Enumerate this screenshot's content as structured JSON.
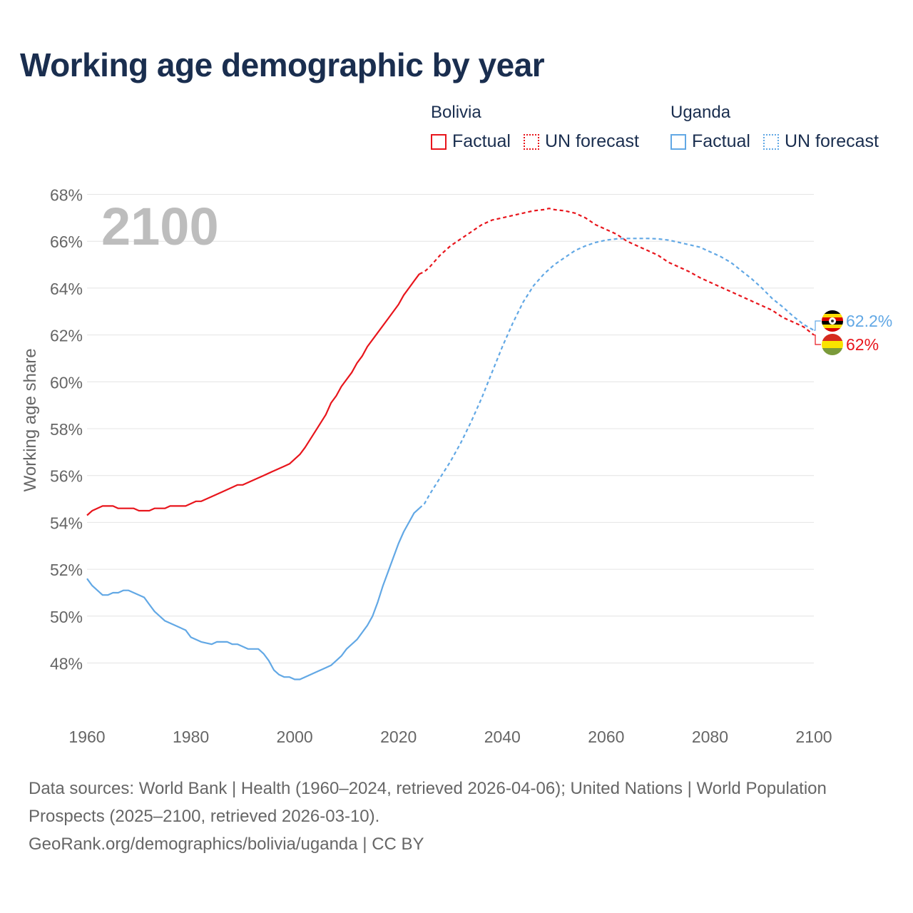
{
  "title": "Working age demographic by year",
  "legend": [
    {
      "country": "Bolivia",
      "color": "#e8151c",
      "factual_label": "Factual",
      "forecast_label": "UN forecast"
    },
    {
      "country": "Uganda",
      "color": "#62a8e5",
      "factual_label": "Factual",
      "forecast_label": "UN forecast"
    }
  ],
  "footer": {
    "sources": "Data sources: World Bank | Health (1960–2024, retrieved 2026-04-06); United Nations | World Population Prospects (2025–2100, retrieved 2026-03-10).",
    "credit": "GeoRank.org/demographics/bolivia/uganda | CC BY"
  },
  "chart_data": {
    "type": "line",
    "year_overlay": "2100",
    "ylabel": "Working age share",
    "xlim": [
      1960,
      2100
    ],
    "ylim": [
      46,
      68
    ],
    "x_ticks": [
      1960,
      1980,
      2000,
      2020,
      2040,
      2060,
      2080,
      2100
    ],
    "y_ticks": [
      48,
      50,
      52,
      54,
      56,
      58,
      60,
      62,
      64,
      66,
      68
    ],
    "y_tick_suffix": "%",
    "grid": true,
    "series": [
      {
        "name": "Bolivia",
        "color": "#e8151c",
        "factual": {
          "x": [
            1960,
            1961,
            1963,
            1965,
            1966,
            1968,
            1969,
            1970,
            1972,
            1973,
            1975,
            1976,
            1979,
            1981,
            1982,
            1984,
            1986,
            1988,
            1989,
            1990,
            1992,
            1994,
            1996,
            1998,
            1999,
            2000,
            2001,
            2002,
            2004,
            2006,
            2007,
            2008,
            2009,
            2010,
            2011,
            2012,
            2013,
            2014,
            2016,
            2018,
            2020,
            2021,
            2022,
            2023,
            2024
          ],
          "y": [
            54.3,
            54.5,
            54.7,
            54.7,
            54.6,
            54.6,
            54.6,
            54.5,
            54.5,
            54.6,
            54.6,
            54.7,
            54.7,
            54.9,
            54.9,
            55.1,
            55.3,
            55.5,
            55.6,
            55.6,
            55.8,
            56.0,
            56.2,
            56.4,
            56.5,
            56.7,
            56.9,
            57.2,
            57.9,
            58.6,
            59.1,
            59.4,
            59.8,
            60.1,
            60.4,
            60.8,
            61.1,
            61.5,
            62.1,
            62.7,
            63.3,
            63.7,
            64.0,
            64.3,
            64.6
          ]
        },
        "forecast": {
          "x": [
            2024,
            2025,
            2026,
            2028,
            2030,
            2032,
            2034,
            2036,
            2038,
            2040,
            2042,
            2044,
            2046,
            2048,
            2049,
            2050,
            2052,
            2054,
            2056,
            2058,
            2060,
            2062,
            2064,
            2066,
            2068,
            2070,
            2072,
            2074,
            2076,
            2078,
            2080,
            2082,
            2084,
            2086,
            2088,
            2090,
            2092,
            2094,
            2096,
            2098,
            2100
          ],
          "y": [
            64.6,
            64.7,
            64.9,
            65.4,
            65.8,
            66.1,
            66.4,
            66.7,
            66.9,
            67.0,
            67.1,
            67.2,
            67.3,
            67.35,
            67.4,
            67.35,
            67.3,
            67.2,
            67.0,
            66.7,
            66.5,
            66.3,
            66.0,
            65.8,
            65.6,
            65.4,
            65.1,
            64.9,
            64.7,
            64.45,
            64.25,
            64.05,
            63.85,
            63.65,
            63.45,
            63.25,
            63.05,
            62.75,
            62.55,
            62.35,
            62.0
          ]
        },
        "end_label": "62%"
      },
      {
        "name": "Uganda",
        "color": "#62a8e5",
        "factual": {
          "x": [
            1960,
            1961,
            1962,
            1963,
            1964,
            1965,
            1966,
            1967,
            1968,
            1969,
            1970,
            1971,
            1972,
            1973,
            1975,
            1977,
            1979,
            1980,
            1982,
            1984,
            1985,
            1987,
            1988,
            1989,
            1990,
            1991,
            1993,
            1994,
            1995,
            1996,
            1997,
            1998,
            1999,
            2000,
            2001,
            2002,
            2004,
            2006,
            2007,
            2008,
            2009,
            2010,
            2012,
            2014,
            2015,
            2016,
            2017,
            2018,
            2019,
            2020,
            2021,
            2022,
            2023,
            2024
          ],
          "y": [
            51.6,
            51.3,
            51.1,
            50.9,
            50.9,
            51.0,
            51.0,
            51.1,
            51.1,
            51.0,
            50.9,
            50.8,
            50.5,
            50.2,
            49.8,
            49.6,
            49.4,
            49.1,
            48.9,
            48.8,
            48.9,
            48.9,
            48.8,
            48.8,
            48.7,
            48.6,
            48.6,
            48.4,
            48.1,
            47.7,
            47.5,
            47.4,
            47.4,
            47.3,
            47.3,
            47.4,
            47.6,
            47.8,
            47.9,
            48.1,
            48.3,
            48.6,
            49.0,
            49.6,
            50.0,
            50.6,
            51.3,
            51.9,
            52.5,
            53.1,
            53.6,
            54.0,
            54.4,
            54.6
          ]
        },
        "forecast": {
          "x": [
            2024,
            2025,
            2026,
            2028,
            2030,
            2032,
            2034,
            2036,
            2038,
            2040,
            2042,
            2044,
            2046,
            2048,
            2050,
            2052,
            2054,
            2056,
            2058,
            2060,
            2062,
            2064,
            2066,
            2068,
            2070,
            2072,
            2074,
            2076,
            2078,
            2080,
            2082,
            2084,
            2086,
            2088,
            2090,
            2092,
            2094,
            2096,
            2098,
            2100
          ],
          "y": [
            54.6,
            54.8,
            55.2,
            55.9,
            56.6,
            57.4,
            58.3,
            59.3,
            60.4,
            61.5,
            62.5,
            63.4,
            64.1,
            64.6,
            65.0,
            65.3,
            65.6,
            65.8,
            65.95,
            66.05,
            66.1,
            66.12,
            66.12,
            66.12,
            66.1,
            66.05,
            65.95,
            65.85,
            65.75,
            65.55,
            65.35,
            65.1,
            64.75,
            64.4,
            64.0,
            63.55,
            63.2,
            62.8,
            62.45,
            62.2
          ]
        },
        "end_label": "62.2%"
      }
    ]
  }
}
